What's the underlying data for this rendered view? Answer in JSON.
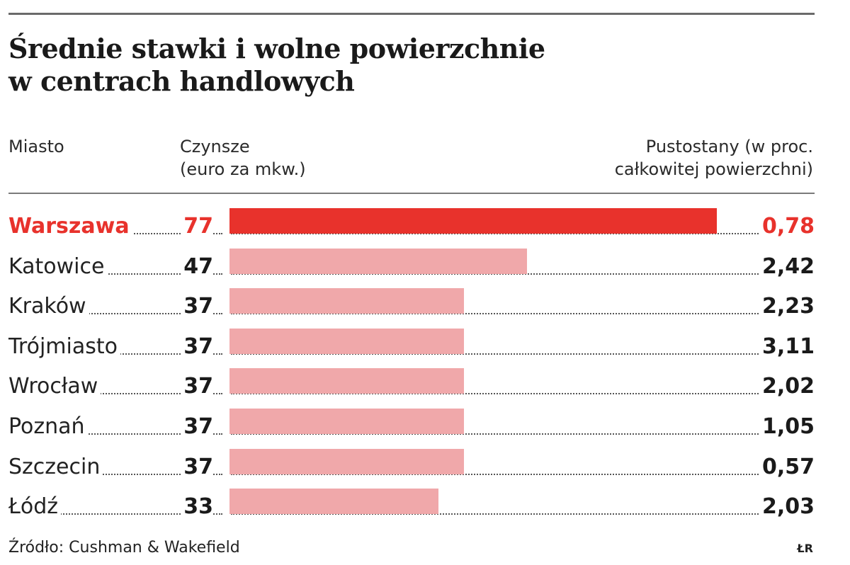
{
  "title_lines": [
    "Średnie stawki i wolne powierzchnie",
    "w centrach handlowych"
  ],
  "headers": {
    "city": "Miasto",
    "rent_lines": [
      "Czynsze",
      "(euro za mkw.)"
    ],
    "vacancy_lines": [
      "Pustostany (w proc.",
      "całkowitej powierzchni)"
    ]
  },
  "source": "Źródło: Cushman & Wakefield",
  "credit": "ŁR",
  "colors": {
    "highlight": "#e8322c",
    "bar": "#f0a8aa",
    "text": "#1e1e1e"
  },
  "chart_data": {
    "type": "bar",
    "title": "Średnie stawki i wolne powierzchnie w centrach handlowych",
    "categories": [
      "Warszawa",
      "Katowice",
      "Kraków",
      "Trójmiasto",
      "Wrocław",
      "Poznań",
      "Szczecin",
      "Łódź"
    ],
    "series": [
      {
        "name": "Czynsze (euro za mkw.)",
        "values": [
          77,
          47,
          37,
          37,
          37,
          37,
          37,
          33
        ],
        "labels": [
          "77",
          "47",
          "37",
          "37",
          "37",
          "37",
          "37",
          "33"
        ]
      },
      {
        "name": "Pustostany (w proc. całkowitej powierzchni)",
        "values": [
          0.78,
          2.42,
          2.23,
          3.11,
          2.02,
          1.05,
          0.57,
          2.03
        ],
        "labels": [
          "0,78",
          "2,42",
          "2,23",
          "3,11",
          "2,02",
          "1,05",
          "0,57",
          "2,03"
        ]
      }
    ],
    "highlight_category": "Warszawa",
    "xlim": [
      0,
      77
    ],
    "grid": false,
    "legend": "none"
  }
}
